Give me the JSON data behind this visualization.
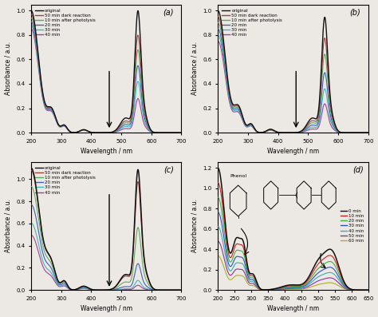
{
  "figure_background": "#ece9e4",
  "colors_abc": [
    "#111111",
    "#a04040",
    "#60a860",
    "#4060b8",
    "#40b8b8",
    "#a040a0"
  ],
  "legend_abc": [
    "original",
    "50 min dark reaction",
    "10 min after photolysis",
    "20 min",
    "30 min",
    "40 min"
  ],
  "colors_d": [
    "#111111",
    "#d02020",
    "#40b040",
    "#3050c0",
    "#30b0b0",
    "#9030a0",
    "#b0b020"
  ],
  "legend_d": [
    "0 min",
    "10 min",
    "20 min",
    "30 min",
    "40 min",
    "50 min",
    "60 min"
  ],
  "subplot_labels": [
    "(a)",
    "(b)",
    "(c)",
    "(d)"
  ]
}
